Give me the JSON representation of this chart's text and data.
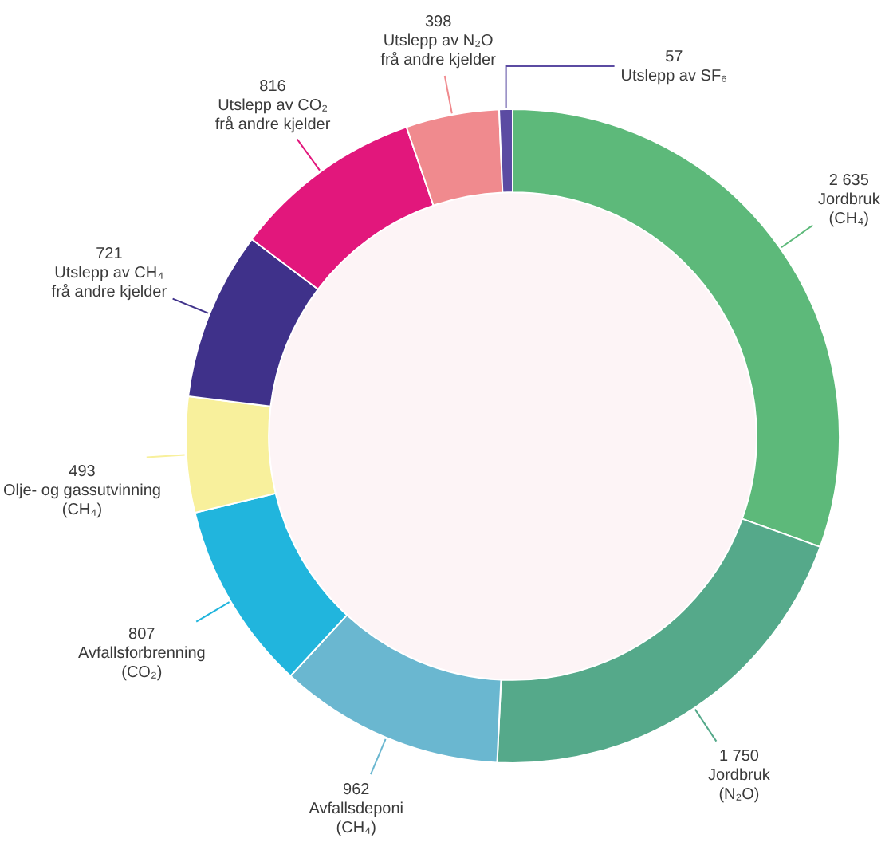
{
  "chart_data": {
    "type": "donut",
    "categories": [
      "Jordbruk\n(CH₄)",
      "Jordbruk\n(N₂O)",
      "Avfallsdeponi\n(CH₄)",
      "Avfallsforbrenning\n(CO₂)",
      "Olje- og gassutvinning\n(CH₄)",
      "Utslepp av CH₄\nfrå andre kjelder",
      "Utslepp av CO₂\nfrå andre kjelder",
      "Utslepp av N₂O\nfrå andre kjelder",
      "Utslepp av SF₆"
    ],
    "values": [
      2635,
      1750,
      962,
      807,
      493,
      721,
      816,
      398,
      57
    ],
    "value_labels": [
      "2 635",
      "1 750",
      "962",
      "807",
      "493",
      "721",
      "816",
      "398",
      "57"
    ],
    "colors": [
      "#5db97a",
      "#55a98a",
      "#6ab7d0",
      "#21b5dd",
      "#f8f09c",
      "#3f318a",
      "#e2177c",
      "#f08a8e",
      "#5b4ba2"
    ]
  }
}
